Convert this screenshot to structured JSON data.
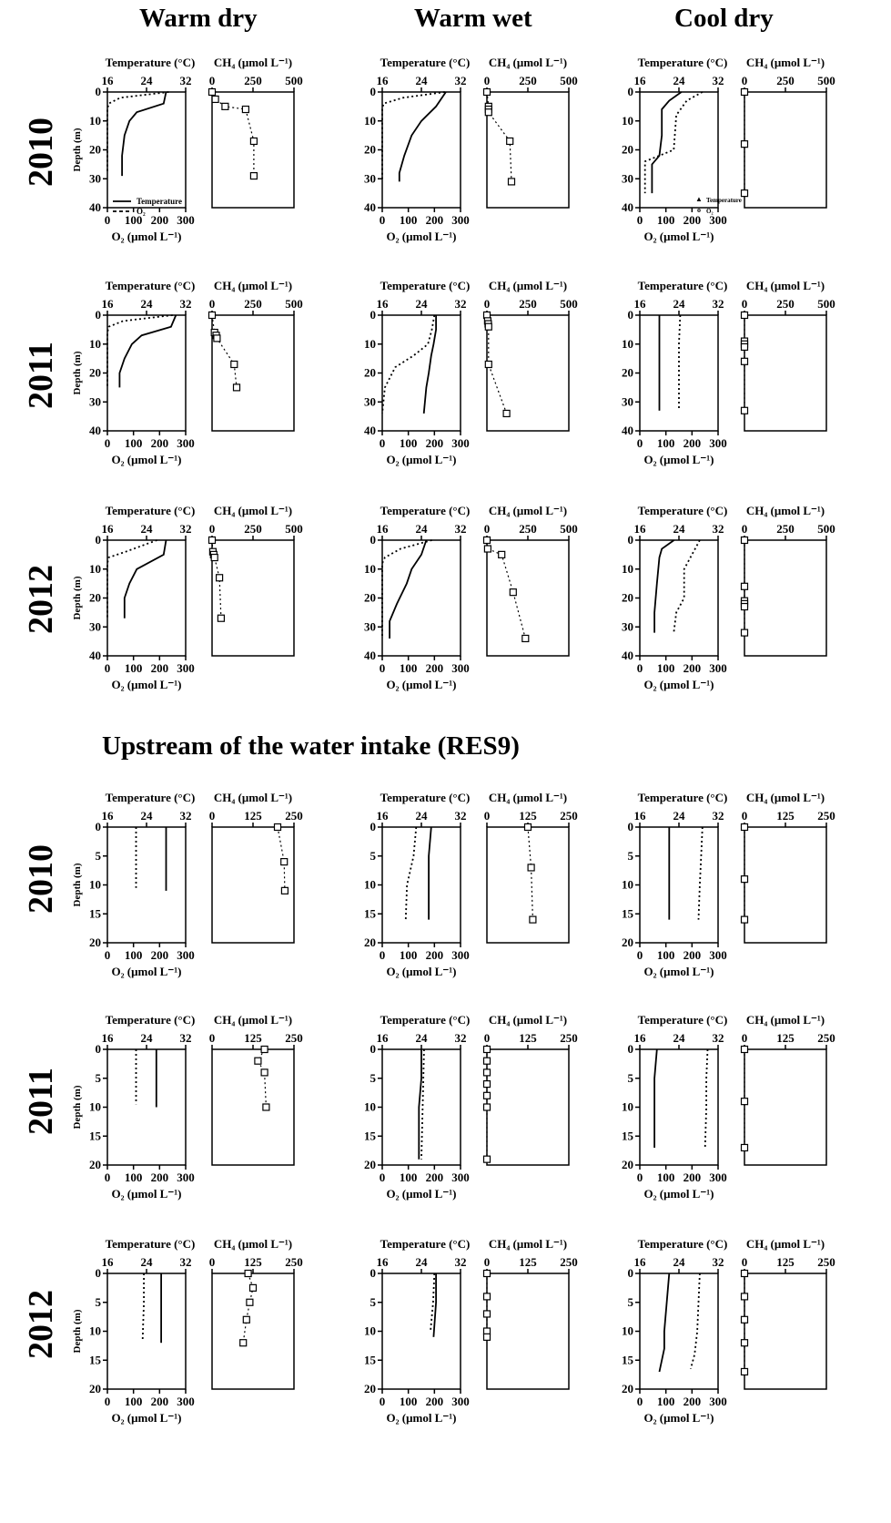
{
  "headers": [
    "Warm dry",
    "Warm wet",
    "Cool dry"
  ],
  "section2_title": "Upstream of the water intake (RES9)",
  "years": [
    "2010",
    "2011",
    "2012",
    "2010",
    "2011",
    "2012"
  ],
  "labels": {
    "temperature": "Temperature (°C)",
    "ch4": "CH₄ (μmol L⁻¹)",
    "o2": "O₂ (μmol L⁻¹)",
    "depth": "Depth (m)"
  },
  "legends": {
    "warm_dry_2010": [
      "Temperature",
      "O₂"
    ],
    "cool_dry_2010": [
      "Temperature",
      "O₂"
    ]
  },
  "axes": {
    "temperature_ticks": [
      "16",
      "24",
      "32"
    ],
    "o2_ticks": [
      "0",
      "100",
      "200",
      "300"
    ],
    "ch4_ticks_top": [
      "0",
      "250",
      "500"
    ],
    "ch4_ticks_bottom": [
      "0",
      "125",
      "250"
    ],
    "depth_ticks_top": [
      "0",
      "10",
      "20",
      "30",
      "40"
    ],
    "depth_ticks_bottom": [
      "0",
      "5",
      "10",
      "15",
      "20"
    ]
  },
  "chart_data": [
    {
      "type": "line",
      "site": "Warm dry",
      "year": "2010",
      "depth_max": 40,
      "ch4_max": 500,
      "temperature": [
        [
          28,
          0
        ],
        [
          27.5,
          4
        ],
        [
          22,
          7
        ],
        [
          20.5,
          10
        ],
        [
          19.5,
          15
        ],
        [
          19,
          22
        ],
        [
          19,
          29
        ]
      ],
      "o2": [
        [
          235,
          0
        ],
        [
          50,
          2
        ],
        [
          5,
          4
        ],
        [
          0,
          6
        ],
        [
          0,
          28
        ]
      ],
      "ch4": [
        [
          0,
          0
        ],
        [
          20,
          2.5
        ],
        [
          80,
          5
        ],
        [
          205,
          6
        ],
        [
          255,
          17
        ],
        [
          255,
          29
        ]
      ]
    },
    {
      "type": "line",
      "site": "Warm wet",
      "year": "2010",
      "depth_max": 40,
      "ch4_max": 500,
      "temperature": [
        [
          29,
          0
        ],
        [
          27,
          5
        ],
        [
          24,
          10
        ],
        [
          22,
          15
        ],
        [
          20.5,
          22
        ],
        [
          19.5,
          28
        ],
        [
          19.5,
          31
        ]
      ],
      "o2": [
        [
          240,
          0
        ],
        [
          80,
          2
        ],
        [
          5,
          4
        ],
        [
          0,
          6
        ],
        [
          0,
          30
        ]
      ],
      "ch4": [
        [
          0,
          0
        ],
        [
          10,
          5
        ],
        [
          10,
          6
        ],
        [
          10,
          7
        ],
        [
          140,
          17
        ],
        [
          150,
          31
        ]
      ]
    },
    {
      "type": "line",
      "site": "Cool dry",
      "year": "2010",
      "depth_max": 40,
      "ch4_max": 500,
      "temperature": [
        [
          24.5,
          0
        ],
        [
          22,
          3
        ],
        [
          20.5,
          6
        ],
        [
          20.5,
          15
        ],
        [
          20,
          22
        ],
        [
          18.5,
          25
        ],
        [
          18.5,
          35
        ]
      ],
      "o2": [
        [
          240,
          0
        ],
        [
          180,
          3
        ],
        [
          140,
          8
        ],
        [
          130,
          20
        ],
        [
          20,
          24
        ],
        [
          20,
          35
        ]
      ],
      "ch4": [
        [
          0,
          0
        ],
        [
          0,
          18
        ],
        [
          0,
          35
        ]
      ]
    },
    {
      "type": "line",
      "site": "Warm dry",
      "year": "2011",
      "depth_max": 40,
      "ch4_max": 500,
      "temperature": [
        [
          30,
          0
        ],
        [
          29,
          4
        ],
        [
          23,
          7
        ],
        [
          21,
          10
        ],
        [
          19.5,
          15
        ],
        [
          18.5,
          20
        ],
        [
          18.5,
          25
        ]
      ],
      "o2": [
        [
          250,
          0
        ],
        [
          60,
          2
        ],
        [
          5,
          4
        ],
        [
          0,
          6
        ],
        [
          0,
          25
        ]
      ],
      "ch4": [
        [
          0,
          0
        ],
        [
          15,
          6
        ],
        [
          25,
          7
        ],
        [
          30,
          8
        ],
        [
          135,
          17
        ],
        [
          150,
          25
        ]
      ]
    },
    {
      "type": "line",
      "site": "Warm wet",
      "year": "2011",
      "depth_max": 40,
      "ch4_max": 500,
      "temperature": [
        [
          27,
          0
        ],
        [
          27,
          5
        ],
        [
          26.5,
          10
        ],
        [
          26,
          14
        ],
        [
          25.5,
          20
        ],
        [
          25,
          25
        ],
        [
          24.5,
          34
        ]
      ],
      "o2": [
        [
          200,
          0
        ],
        [
          190,
          5
        ],
        [
          175,
          10
        ],
        [
          120,
          14
        ],
        [
          50,
          18
        ],
        [
          10,
          25
        ],
        [
          0,
          34
        ]
      ],
      "ch4": [
        [
          0,
          0
        ],
        [
          5,
          2
        ],
        [
          8,
          3
        ],
        [
          10,
          4
        ],
        [
          10,
          17
        ],
        [
          120,
          34
        ]
      ]
    },
    {
      "type": "line",
      "site": "Cool dry",
      "year": "2011",
      "depth_max": 40,
      "ch4_max": 500,
      "temperature": [
        [
          20,
          0
        ],
        [
          20,
          10
        ],
        [
          20,
          20
        ],
        [
          20,
          33
        ]
      ],
      "o2": [
        [
          155,
          0
        ],
        [
          150,
          10
        ],
        [
          150,
          20
        ],
        [
          150,
          33
        ]
      ],
      "ch4": [
        [
          0,
          0
        ],
        [
          0,
          9
        ],
        [
          0,
          10
        ],
        [
          0,
          11
        ],
        [
          0,
          16
        ],
        [
          0,
          33
        ]
      ]
    },
    {
      "type": "line",
      "site": "Warm dry",
      "year": "2012",
      "depth_max": 40,
      "ch4_max": 500,
      "temperature": [
        [
          28,
          0
        ],
        [
          27.5,
          5
        ],
        [
          22,
          10
        ],
        [
          20.5,
          15
        ],
        [
          19.5,
          20
        ],
        [
          19.5,
          27
        ]
      ],
      "o2": [
        [
          190,
          0
        ],
        [
          70,
          4
        ],
        [
          5,
          6
        ],
        [
          0,
          8
        ],
        [
          0,
          27
        ]
      ],
      "ch4": [
        [
          0,
          0
        ],
        [
          5,
          4
        ],
        [
          10,
          5
        ],
        [
          15,
          6
        ],
        [
          45,
          13
        ],
        [
          55,
          27
        ]
      ]
    },
    {
      "type": "line",
      "site": "Warm wet",
      "year": "2012",
      "depth_max": 40,
      "ch4_max": 500,
      "temperature": [
        [
          25,
          0
        ],
        [
          24,
          5
        ],
        [
          22,
          10
        ],
        [
          21,
          15
        ],
        [
          19,
          22
        ],
        [
          17.5,
          28
        ],
        [
          17.5,
          34
        ]
      ],
      "o2": [
        [
          190,
          0
        ],
        [
          70,
          3
        ],
        [
          10,
          6
        ],
        [
          0,
          8
        ],
        [
          0,
          34
        ]
      ],
      "ch4": [
        [
          0,
          0
        ],
        [
          5,
          3
        ],
        [
          90,
          5
        ],
        [
          160,
          18
        ],
        [
          235,
          34
        ]
      ]
    },
    {
      "type": "line",
      "site": "Cool dry",
      "year": "2012",
      "depth_max": 40,
      "ch4_max": 500,
      "temperature": [
        [
          23,
          0
        ],
        [
          20.5,
          3
        ],
        [
          20,
          6
        ],
        [
          19.5,
          15
        ],
        [
          19,
          25
        ],
        [
          19,
          32
        ]
      ],
      "o2": [
        [
          230,
          0
        ],
        [
          200,
          5
        ],
        [
          170,
          10
        ],
        [
          170,
          20
        ],
        [
          140,
          25
        ],
        [
          130,
          32
        ]
      ],
      "ch4": [
        [
          0,
          0
        ],
        [
          0,
          16
        ],
        [
          0,
          21
        ],
        [
          0,
          22
        ],
        [
          0,
          23
        ],
        [
          0,
          32
        ]
      ]
    },
    {
      "type": "line",
      "site": "Warm dry",
      "year": "2010 (RES9)",
      "depth_max": 20,
      "ch4_max": 250,
      "temperature": [
        [
          28,
          0
        ],
        [
          28,
          5
        ],
        [
          28,
          11
        ]
      ],
      "o2": [
        [
          110,
          0
        ],
        [
          110,
          5
        ],
        [
          110,
          10.5
        ]
      ],
      "ch4": [
        [
          200,
          0
        ],
        [
          220,
          6
        ],
        [
          222,
          11
        ]
      ]
    },
    {
      "type": "line",
      "site": "Warm wet",
      "year": "2010 (RES9)",
      "depth_max": 20,
      "ch4_max": 250,
      "temperature": [
        [
          26,
          0
        ],
        [
          25.5,
          5
        ],
        [
          25.5,
          10
        ],
        [
          25.5,
          16
        ]
      ],
      "o2": [
        [
          130,
          0
        ],
        [
          120,
          5
        ],
        [
          95,
          10
        ],
        [
          90,
          16
        ]
      ],
      "ch4": [
        [
          125,
          0
        ],
        [
          135,
          7
        ],
        [
          140,
          16
        ]
      ]
    },
    {
      "type": "line",
      "site": "Cool dry",
      "year": "2010 (RES9)",
      "depth_max": 20,
      "ch4_max": 250,
      "temperature": [
        [
          22,
          0
        ],
        [
          22,
          5
        ],
        [
          22,
          10
        ],
        [
          22,
          16
        ]
      ],
      "o2": [
        [
          240,
          0
        ],
        [
          235,
          5
        ],
        [
          230,
          10
        ],
        [
          225,
          16
        ]
      ],
      "ch4": [
        [
          0,
          0
        ],
        [
          0,
          9
        ],
        [
          0,
          16
        ]
      ]
    },
    {
      "type": "line",
      "site": "Warm dry",
      "year": "2011 (RES9)",
      "depth_max": 20,
      "ch4_max": 250,
      "temperature": [
        [
          26,
          0
        ],
        [
          26,
          5
        ],
        [
          26,
          10
        ]
      ],
      "o2": [
        [
          110,
          0
        ],
        [
          110,
          5
        ],
        [
          110,
          9.5
        ]
      ],
      "ch4": [
        [
          160,
          0
        ],
        [
          140,
          2
        ],
        [
          160,
          4
        ],
        [
          165,
          10
        ]
      ]
    },
    {
      "type": "line",
      "site": "Warm wet",
      "year": "2011 (RES9)",
      "depth_max": 20,
      "ch4_max": 250,
      "temperature": [
        [
          24,
          0
        ],
        [
          24,
          5
        ],
        [
          23.5,
          10
        ],
        [
          23.5,
          19
        ]
      ],
      "o2": [
        [
          160,
          0
        ],
        [
          155,
          10
        ],
        [
          150,
          19
        ]
      ],
      "ch4": [
        [
          0,
          0
        ],
        [
          0,
          2
        ],
        [
          0,
          4
        ],
        [
          0,
          6
        ],
        [
          0,
          8
        ],
        [
          0,
          10
        ],
        [
          0,
          19
        ]
      ]
    },
    {
      "type": "line",
      "site": "Cool dry",
      "year": "2011 (RES9)",
      "depth_max": 20,
      "ch4_max": 250,
      "temperature": [
        [
          19.5,
          0
        ],
        [
          19,
          5
        ],
        [
          19,
          10
        ],
        [
          19,
          17
        ]
      ],
      "o2": [
        [
          260,
          0
        ],
        [
          255,
          5
        ],
        [
          255,
          10
        ],
        [
          250,
          17
        ]
      ],
      "ch4": [
        [
          0,
          0
        ],
        [
          0,
          9
        ],
        [
          0,
          17
        ]
      ]
    },
    {
      "type": "line",
      "site": "Warm dry",
      "year": "2012 (RES9)",
      "depth_max": 20,
      "ch4_max": 250,
      "temperature": [
        [
          27,
          0
        ],
        [
          27,
          5
        ],
        [
          27,
          12
        ]
      ],
      "o2": [
        [
          140,
          0
        ],
        [
          140,
          5
        ],
        [
          135,
          11.5
        ]
      ],
      "ch4": [
        [
          110,
          0
        ],
        [
          125,
          2.5
        ],
        [
          115,
          5
        ],
        [
          105,
          8
        ],
        [
          95,
          12
        ]
      ]
    },
    {
      "type": "line",
      "site": "Warm wet",
      "year": "2012 (RES9)",
      "depth_max": 20,
      "ch4_max": 250,
      "temperature": [
        [
          27,
          0
        ],
        [
          27,
          5
        ],
        [
          26.5,
          11
        ]
      ],
      "o2": [
        [
          200,
          0
        ],
        [
          195,
          5
        ],
        [
          185,
          10
        ]
      ],
      "ch4": [
        [
          0,
          0
        ],
        [
          0,
          4
        ],
        [
          0,
          7
        ],
        [
          0,
          10
        ],
        [
          0,
          11
        ]
      ]
    },
    {
      "type": "line",
      "site": "Cool dry",
      "year": "2012 (RES9)",
      "depth_max": 20,
      "ch4_max": 250,
      "temperature": [
        [
          22,
          0
        ],
        [
          21.5,
          5
        ],
        [
          21,
          10
        ],
        [
          21,
          13
        ],
        [
          20,
          17
        ]
      ],
      "o2": [
        [
          230,
          0
        ],
        [
          225,
          5
        ],
        [
          220,
          10
        ],
        [
          210,
          14
        ],
        [
          195,
          16.5
        ]
      ],
      "ch4": [
        [
          0,
          0
        ],
        [
          0,
          4
        ],
        [
          0,
          8
        ],
        [
          0,
          12
        ],
        [
          0,
          17
        ]
      ]
    }
  ]
}
